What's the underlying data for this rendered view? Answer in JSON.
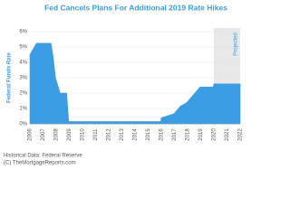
{
  "chart_data": {
    "type": "area",
    "title": "Fed Cancels Plans For Additional 2019 Rate Hikes",
    "y_label": "Federal Funds Rate",
    "projected_label": "Projected",
    "projected_span": [
      2020,
      2022
    ],
    "footer": [
      "Historical Data: Federal Reserve",
      "(C) TheMortgageReports.com"
    ],
    "color": "#3a9de4",
    "grid": true,
    "x": [
      2006,
      2006.5,
      2007.6,
      2007.75,
      2007.95,
      2008.3,
      2008.8,
      2008.95,
      2015.95,
      2016.0,
      2016.95,
      2017.2,
      2017.45,
      2017.95,
      2018.2,
      2018.45,
      2018.7,
      2018.95,
      2019.95,
      2020.0,
      2022
    ],
    "values": [
      4.5,
      5.25,
      5.25,
      4.5,
      3.0,
      2.0,
      2.0,
      0.15,
      0.15,
      0.4,
      0.65,
      0.9,
      1.15,
      1.4,
      1.65,
      1.9,
      2.15,
      2.4,
      2.4,
      2.6,
      2.6
    ],
    "xlim": [
      2006,
      2022
    ],
    "xticks": [
      2006,
      2007,
      2008,
      2009,
      2010,
      2011,
      2012,
      2013,
      2014,
      2015,
      2016,
      2017,
      2018,
      2019,
      2020,
      2021,
      2022
    ],
    "ylim": [
      0,
      6
    ],
    "yticks": [
      {
        "value": 0,
        "label": "0%"
      },
      {
        "value": 1,
        "label": "1%"
      },
      {
        "value": 2,
        "label": "2%"
      },
      {
        "value": 3,
        "label": "3%"
      },
      {
        "value": 4,
        "label": "4%"
      },
      {
        "value": 5,
        "label": "5%"
      },
      {
        "value": 6,
        "label": "6%"
      }
    ]
  }
}
